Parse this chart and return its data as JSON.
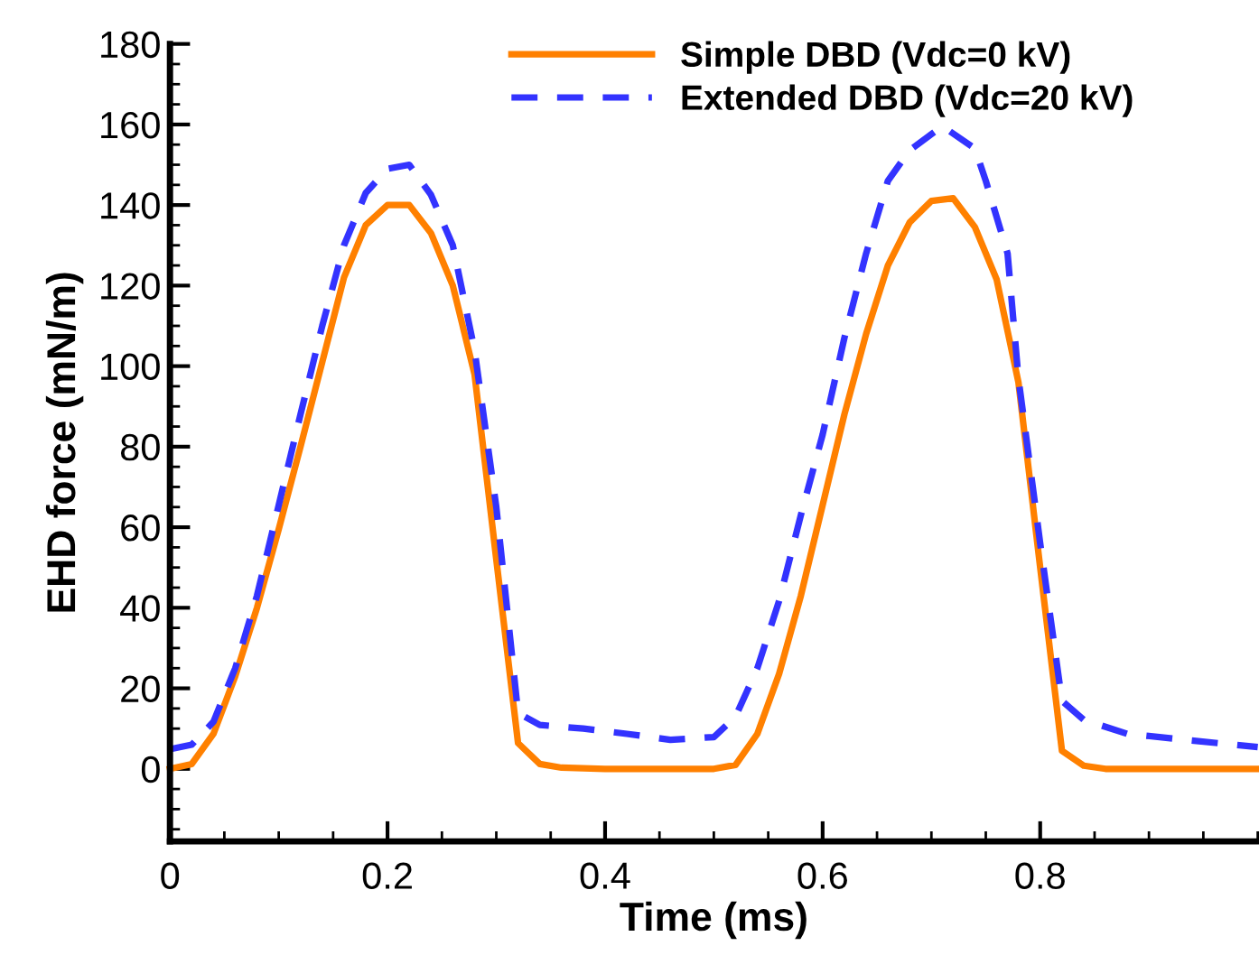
{
  "chart_data": {
    "type": "line",
    "xlabel": "Time (ms)",
    "ylabel": "EHD force (mN/m)",
    "xlim": [
      0,
      1.0
    ],
    "ylim": [
      -18,
      180
    ],
    "xticks": [
      0,
      0.2,
      0.4,
      0.6,
      0.8
    ],
    "yticks": [
      0,
      20,
      40,
      60,
      80,
      100,
      120,
      140,
      160,
      180
    ],
    "grid": false,
    "legend": "top",
    "marker": "none",
    "series": [
      {
        "name": "Simple DBD (Vdc=0 kV)",
        "color": "#ff8000",
        "line_style": "solid",
        "x": [
          0,
          0.02,
          0.04,
          0.06,
          0.08,
          0.1,
          0.12,
          0.14,
          0.16,
          0.18,
          0.2,
          0.22,
          0.24,
          0.26,
          0.28,
          0.3,
          0.32,
          0.34,
          0.36,
          0.4,
          0.5,
          0.52,
          0.54,
          0.56,
          0.58,
          0.6,
          0.62,
          0.64,
          0.66,
          0.68,
          0.7,
          0.72,
          0.74,
          0.76,
          0.78,
          0.8,
          0.82,
          0.84,
          0.86,
          0.9,
          1.0
        ],
        "values": [
          0,
          1.2,
          8.7,
          23,
          40,
          59.5,
          80,
          101,
          122,
          135,
          140,
          140,
          133,
          120,
          98,
          52,
          6.4,
          1.2,
          0.3,
          0,
          0,
          1,
          8.7,
          23.6,
          43,
          65.5,
          88,
          108,
          125,
          135.7,
          141,
          141.7,
          134.5,
          121.5,
          96,
          50,
          4.5,
          0.8,
          0,
          0,
          0
        ]
      },
      {
        "name": "Extended DBD (Vdc=20 kV)",
        "color": "#3333ff",
        "line_style": "dashed",
        "x": [
          0,
          0.02,
          0.04,
          0.06,
          0.08,
          0.1,
          0.12,
          0.14,
          0.16,
          0.18,
          0.2,
          0.22,
          0.24,
          0.26,
          0.28,
          0.3,
          0.32,
          0.34,
          0.38,
          0.42,
          0.46,
          0.5,
          0.52,
          0.54,
          0.56,
          0.58,
          0.6,
          0.62,
          0.64,
          0.66,
          0.68,
          0.71,
          0.74,
          0.75,
          0.77,
          0.78,
          0.8,
          0.82,
          0.84,
          0.88,
          0.93,
          1.0
        ],
        "values": [
          4.9,
          6,
          11.7,
          25,
          43,
          65.5,
          88,
          110,
          130,
          143,
          149,
          150,
          142.5,
          130,
          104,
          65,
          13.9,
          10.9,
          10,
          8.7,
          7.2,
          7.9,
          13,
          25,
          41.7,
          63,
          83,
          107,
          128,
          146,
          153.6,
          159.6,
          154,
          146,
          128,
          97,
          56,
          16.9,
          12.2,
          8.7,
          7.3,
          5.4
        ]
      }
    ]
  }
}
